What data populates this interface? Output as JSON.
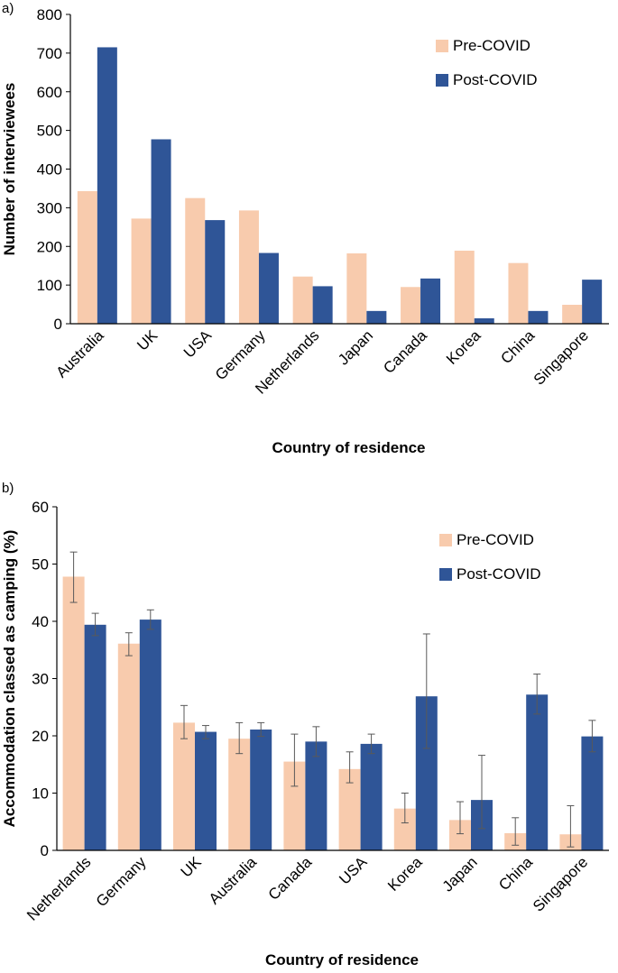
{
  "colors": {
    "pre": "#F8CBAD",
    "post": "#2F5597",
    "axis": "#000000",
    "errorbar": "#595959"
  },
  "chart_data": [
    {
      "panel": "a)",
      "type": "bar",
      "title": "",
      "xlabel": "Country of residence",
      "ylabel": "Number of interviewees",
      "ylim": [
        0,
        800
      ],
      "yticks": [
        "0",
        "100",
        "200",
        "300",
        "400",
        "500",
        "600",
        "700",
        "800"
      ],
      "categories": [
        "Australia",
        "UK",
        "USA",
        "Germany",
        "Netherlands",
        "Japan",
        "Canada",
        "Korea",
        "China",
        "Singapore"
      ],
      "series": [
        {
          "name": "Pre-COVID",
          "values": [
            343,
            272,
            325,
            293,
            122,
            182,
            95,
            189,
            157,
            49
          ]
        },
        {
          "name": "Post-COVID",
          "values": [
            715,
            477,
            268,
            183,
            97,
            33,
            117,
            14,
            33,
            114
          ]
        }
      ],
      "legend": "top-right",
      "grid": false
    },
    {
      "panel": "b)",
      "type": "bar",
      "title": "",
      "xlabel": "Country of residence",
      "ylabel": "Accommodation classed as camping (%)",
      "ylim": [
        0,
        60
      ],
      "yticks": [
        "0",
        "10",
        "20",
        "30",
        "40",
        "50",
        "60"
      ],
      "categories": [
        "Netherlands",
        "Germany",
        "UK",
        "Australia",
        "Canada",
        "USA",
        "Korea",
        "Japan",
        "China",
        "Singapore"
      ],
      "series": [
        {
          "name": "Pre-COVID",
          "values": [
            47.8,
            36.1,
            22.3,
            19.5,
            15.5,
            14.2,
            7.3,
            5.3,
            3.0,
            2.8
          ],
          "error": [
            [
              43.3,
              52.1
            ],
            [
              34.0,
              38.0
            ],
            [
              19.5,
              25.3
            ],
            [
              16.9,
              22.3
            ],
            [
              11.2,
              20.3
            ],
            [
              11.8,
              17.2
            ],
            [
              4.8,
              10.0
            ],
            [
              2.9,
              8.5
            ],
            [
              0.9,
              5.7
            ],
            [
              0.6,
              7.8
            ]
          ]
        },
        {
          "name": "Post-COVID",
          "values": [
            39.4,
            40.3,
            20.7,
            21.1,
            19.0,
            18.6,
            26.9,
            8.8,
            27.2,
            19.9
          ],
          "error": [
            [
              37.5,
              41.4
            ],
            [
              38.6,
              42.0
            ],
            [
              19.5,
              21.8
            ],
            [
              19.9,
              22.3
            ],
            [
              16.4,
              21.6
            ],
            [
              16.9,
              20.3
            ],
            [
              17.8,
              37.8
            ],
            [
              3.8,
              16.6
            ],
            [
              23.8,
              30.8
            ],
            [
              17.2,
              22.7
            ]
          ]
        }
      ],
      "legend": "top-right",
      "grid": false
    }
  ]
}
